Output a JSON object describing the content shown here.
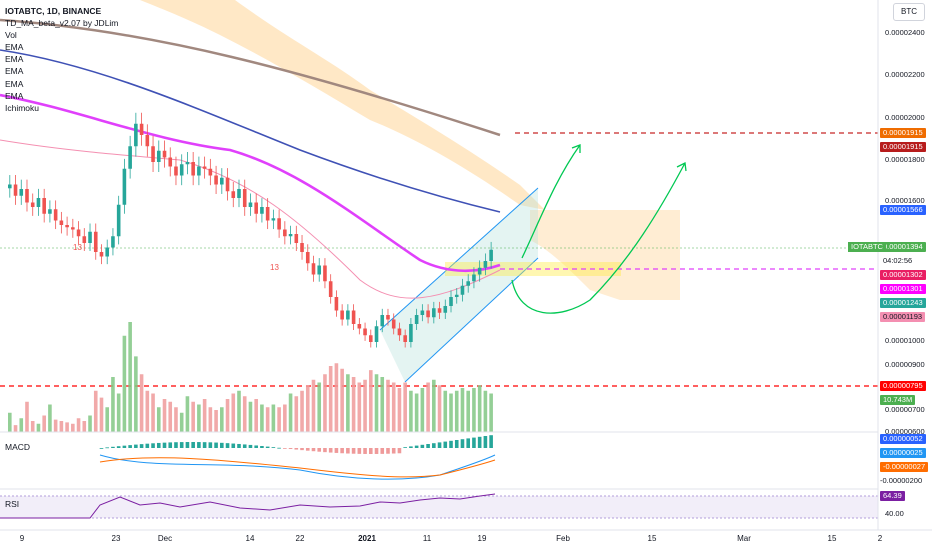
{
  "legend": {
    "symbol": "IOTABTC, 1D, BINANCE",
    "indicators": [
      "TD_MA_beta_v2.07 by JDLim",
      "Vol",
      "EMA",
      "EMA",
      "EMA",
      "EMA",
      "EMA",
      "Ichimoku"
    ]
  },
  "currency_button": "BTC",
  "macd_label": "MACD",
  "rsi_label": "RSI",
  "price_axis": [
    "0.00002400",
    "0.00002200",
    "0.00002000",
    "0.00001800",
    "0.00001600",
    "0.00001000",
    "0.00000900",
    "0.00000700",
    "0.00000600"
  ],
  "macd_axis": [
    "-0.00000200"
  ],
  "rsi_axis": [
    "40.00"
  ],
  "price_badges": [
    {
      "text": "0.00001915",
      "bg": "#ef6c00",
      "fg": "#ffffff"
    },
    {
      "text": "0.00001915",
      "bg": "#b71c1c",
      "fg": "#ffffff"
    },
    {
      "text": "0.00001566",
      "bg": "#2962ff",
      "fg": "#ffffff"
    },
    {
      "text": "0.00001394",
      "bg": "#4caf50",
      "fg": "#ffffff"
    },
    {
      "text": "04:02:56",
      "bg": "#ffffff",
      "fg": "#131722"
    },
    {
      "text": "0.00001302",
      "bg": "#e91e63",
      "fg": "#ffffff"
    },
    {
      "text": "0.00001301",
      "bg": "#ff00ff",
      "fg": "#ffffff"
    },
    {
      "text": "0.00001243",
      "bg": "#26a69a",
      "fg": "#ffffff"
    },
    {
      "text": "0.00001193",
      "bg": "#f48fb1",
      "fg": "#131722"
    },
    {
      "text": "0.00000795",
      "bg": "#ff0000",
      "fg": "#ffffff"
    },
    {
      "text": "10.743M",
      "bg": "#4caf50",
      "fg": "#ffffff"
    },
    {
      "text": "0.00000052",
      "bg": "#2962ff",
      "fg": "#ffffff"
    },
    {
      "text": "0.00000025",
      "bg": "#2196f3",
      "fg": "#ffffff"
    },
    {
      "text": "-0.00000027",
      "bg": "#ff6d00",
      "fg": "#ffffff"
    },
    {
      "text": "64.39",
      "bg": "#7b1fa2",
      "fg": "#ffffff"
    }
  ],
  "symbol_tag": "IOTABTC",
  "x_axis": [
    "9",
    "23",
    "Dec",
    "14",
    "22",
    "2021",
    "11",
    "19",
    "Feb",
    "15",
    "Mar",
    "15",
    "2"
  ],
  "colors": {
    "up": "#26a69a",
    "down": "#ef5350",
    "ema200": "#a1887f",
    "ema100": "#3f51b5",
    "ema50": "#e040fb"
  },
  "chart_data": {
    "type": "candlestick",
    "title": "IOTABTC, 1D, BINANCE",
    "y_unit": "BTC",
    "ylim": [
      5.8e-06,
      2.5e-05
    ],
    "closes": [
      1.68e-05,
      1.63e-05,
      1.66e-05,
      1.6e-05,
      1.58e-05,
      1.62e-05,
      1.55e-05,
      1.57e-05,
      1.52e-05,
      1.5e-05,
      1.49e-05,
      1.48e-05,
      1.45e-05,
      1.42e-05,
      1.47e-05,
      1.38e-05,
      1.36e-05,
      1.4e-05,
      1.45e-05,
      1.59e-05,
      1.75e-05,
      1.85e-05,
      1.95e-05,
      1.9e-05,
      1.85e-05,
      1.78e-05,
      1.83e-05,
      1.8e-05,
      1.76e-05,
      1.72e-05,
      1.77e-05,
      1.78e-05,
      1.72e-05,
      1.76e-05,
      1.75e-05,
      1.72e-05,
      1.68e-05,
      1.71e-05,
      1.65e-05,
      1.62e-05,
      1.66e-05,
      1.58e-05,
      1.6e-05,
      1.55e-05,
      1.58e-05,
      1.52e-05,
      1.53e-05,
      1.48e-05,
      1.45e-05,
      1.46e-05,
      1.42e-05,
      1.38e-05,
      1.33e-05,
      1.28e-05,
      1.32e-05,
      1.25e-05,
      1.18e-05,
      1.12e-05,
      1.08e-05,
      1.12e-05,
      1.06e-05,
      1.04e-05,
      1.01e-05,
      9.8e-06,
      1.05e-05,
      1.1e-05,
      1.08e-05,
      1.04e-05,
      1.01e-05,
      9.8e-06,
      1.06e-05,
      1.1e-05,
      1.12e-05,
      1.09e-05,
      1.13e-05,
      1.11e-05,
      1.14e-05,
      1.18e-05,
      1.19e-05,
      1.23e-05,
      1.25e-05,
      1.28e-05,
      1.31e-05,
      1.34e-05,
      1.39e-05
    ],
    "volume": [
      14,
      5,
      10,
      22,
      8,
      6,
      12,
      20,
      9,
      8,
      7,
      6,
      10,
      8,
      12,
      30,
      25,
      18,
      40,
      28,
      70,
      80,
      55,
      42,
      30,
      28,
      18,
      24,
      22,
      18,
      14,
      26,
      22,
      20,
      24,
      18,
      16,
      18,
      24,
      28,
      30,
      26,
      22,
      24,
      20,
      18,
      20,
      18,
      20,
      28,
      26,
      30,
      34,
      38,
      36,
      42,
      48,
      50,
      46,
      42,
      40,
      36,
      38,
      45,
      42,
      40,
      38,
      36,
      32,
      36,
      30,
      28,
      32,
      36,
      38,
      34,
      30,
      28,
      30,
      32,
      30,
      32,
      34,
      30,
      28
    ],
    "ema_200": [
      2.45e-05,
      1.91e-05
    ],
    "ema_100": [
      2.3e-05,
      1.56e-05
    ],
    "ema_50": [
      1.95e-05,
      1.3e-05
    ],
    "levels": [
      1.915e-05,
      1.302e-05,
      7.95e-06
    ],
    "rsi_last": 64.39,
    "x_ticks": [
      "9",
      "23",
      "Dec",
      "14",
      "22",
      "2021",
      "11",
      "19",
      "Feb",
      "15",
      "Mar",
      "15",
      "2"
    ]
  }
}
